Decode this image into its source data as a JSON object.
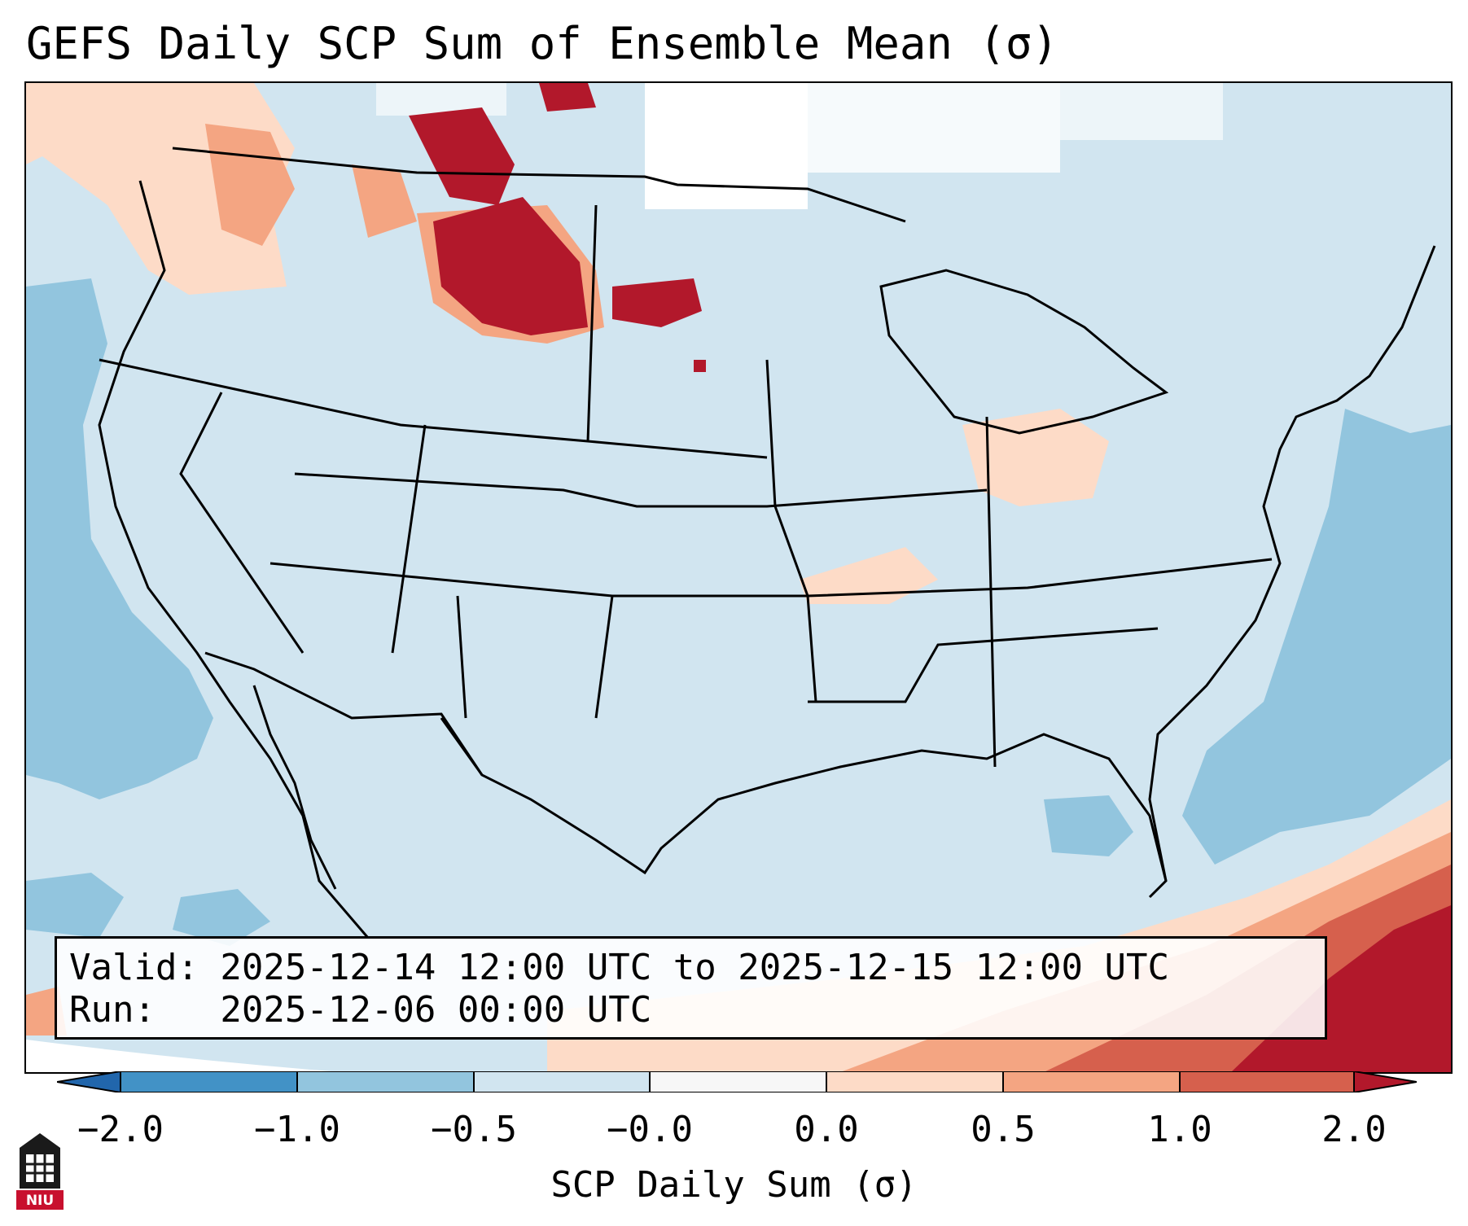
{
  "title": "GEFS Daily SCP Sum of Ensemble Mean (σ)",
  "info": {
    "valid_line": "Valid: 2025-12-14 12:00 UTC to 2025-12-15 12:00 UTC",
    "run_line": "Run:   2025-12-06 00:00 UTC"
  },
  "colorbar": {
    "label": "SCP Daily Sum (σ)",
    "ticks": [
      "−2.0",
      "−1.0",
      "−0.5",
      "−0.0",
      "0.0",
      "0.5",
      "1.0",
      "2.0"
    ],
    "colors": [
      "#4292c6",
      "#92c5de",
      "#d1e5f0",
      "#f7f7f7",
      "#fddbc7",
      "#f4a582",
      "#d6604d",
      "#b2182b"
    ],
    "extend_low_color": "#2166ac",
    "extend_high_color": "#b2182b"
  },
  "logo": {
    "text": "NIU",
    "name": "niu-logo-icon"
  },
  "map": {
    "background_color": "#d1e5f0",
    "ocean_negative_color": "#92c5de",
    "positive_light_color": "#fddbc7",
    "positive_mid_color": "#f4a582",
    "positive_strong_color": "#d6604d",
    "positive_max_color": "#b2182b"
  }
}
